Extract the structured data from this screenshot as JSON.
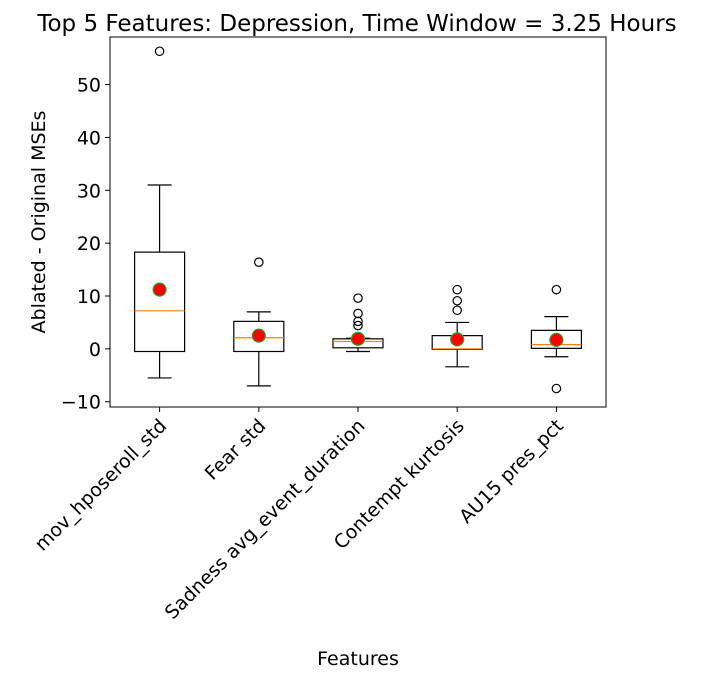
{
  "chart_data": {
    "type": "box",
    "title": "Top 5 Features: Depression, Time Window = 3.25 Hours",
    "xlabel": "Features",
    "ylabel": "Ablated - Original MSEs",
    "ylim": [
      -11,
      59
    ],
    "yticks": [
      -10,
      0,
      10,
      20,
      30,
      40,
      50
    ],
    "ytick_labels": [
      "−10",
      "0",
      "10",
      "20",
      "30",
      "40",
      "50"
    ],
    "grid": false,
    "colors": {
      "box": "#000000",
      "median": "#ff7f0e",
      "mean_fill": "#ff0000",
      "mean_edge": "#2ca02c",
      "outlier": "#000000"
    },
    "categories": [
      "mov_hposeroll_std",
      "Fear std",
      "Sadness avg_event_duration",
      "Contempt kurtosis",
      "AU15 pres_pct"
    ],
    "boxes": [
      {
        "whisker_low": -5.5,
        "q1": -0.5,
        "median": 7.2,
        "q3": 18.3,
        "whisker_high": 31.0,
        "mean": 11.2,
        "outliers": [
          56.3
        ]
      },
      {
        "whisker_low": -7.0,
        "q1": -0.5,
        "median": 2.1,
        "q3": 5.2,
        "whisker_high": 7.0,
        "mean": 2.5,
        "outliers": [
          16.4
        ]
      },
      {
        "whisker_low": -0.5,
        "q1": 0.2,
        "median": 1.4,
        "q3": 1.9,
        "whisker_high": 2.0,
        "mean": 1.9,
        "outliers": [
          4.4,
          5.2,
          6.7,
          9.6
        ]
      },
      {
        "whisker_low": -3.4,
        "q1": -0.1,
        "median": 0.0,
        "q3": 2.5,
        "whisker_high": 5.0,
        "mean": 1.8,
        "outliers": [
          7.3,
          9.1,
          11.2
        ]
      },
      {
        "whisker_low": -1.5,
        "q1": 0.1,
        "median": 0.8,
        "q3": 3.5,
        "whisker_high": 6.1,
        "mean": 1.7,
        "outliers": [
          11.2,
          -7.5
        ]
      }
    ]
  }
}
